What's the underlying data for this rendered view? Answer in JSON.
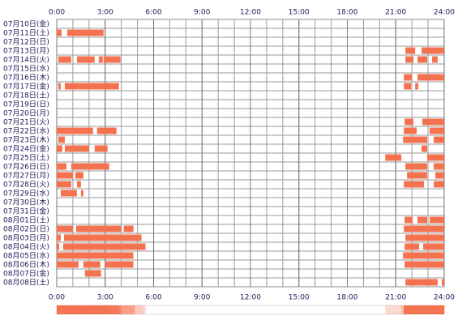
{
  "chart_data": {
    "type": "timeline",
    "categories": [
      "07月10日(金)",
      "07月11日(土)",
      "07月12日(日)",
      "07月13日(月)",
      "07月14日(火)",
      "07月15日(水)",
      "07月16日(木)",
      "07月17日(金)",
      "07月18日(土)",
      "07月19日(日)",
      "07月20日(月)",
      "07月21日(火)",
      "07月22日(水)",
      "07月23日(木)",
      "07月24日(金)",
      "07月25日(土)",
      "07月26日(日)",
      "07月27日(月)",
      "07月28日(火)",
      "07月29日(水)",
      "07月30日(木)",
      "07月31日(金)",
      "08月01日(土)",
      "08月02日(日)",
      "08月03日(月)",
      "08月04日(火)",
      "08月05日(水)",
      "08月06日(木)",
      "08月07日(金)",
      "08月08日(土)"
    ],
    "segments": [
      [],
      [
        [
          0,
          0.3
        ],
        [
          0.65,
          2.9
        ]
      ],
      [],
      [
        [
          21.6,
          22.2
        ],
        [
          22.6,
          24
        ]
      ],
      [
        [
          0.1,
          0.9
        ],
        [
          1.25,
          2.35
        ],
        [
          2.6,
          2.85
        ],
        [
          2.9,
          3.95
        ],
        [
          21.6,
          22.1
        ],
        [
          22.35,
          22.95
        ],
        [
          23.25,
          23.6
        ]
      ],
      [],
      [
        [
          21.5,
          22
        ],
        [
          22.35,
          24
        ]
      ],
      [
        [
          0.1,
          0.25
        ],
        [
          0.5,
          3.85
        ],
        [
          21.5,
          21.95
        ],
        [
          22.2,
          22.4
        ]
      ],
      [],
      [],
      [],
      [
        [
          21.55,
          22.1
        ],
        [
          22.65,
          24
        ]
      ],
      [
        [
          0,
          2.25
        ],
        [
          2.5,
          3.7
        ],
        [
          21.5,
          22.3
        ],
        [
          23.1,
          24
        ]
      ],
      [
        [
          0.1,
          0.5
        ],
        [
          21.45,
          22.95
        ],
        [
          23.35,
          24
        ]
      ],
      [
        [
          0,
          0.35
        ],
        [
          0.5,
          2
        ],
        [
          2.35,
          3.15
        ],
        [
          22.6,
          22.95
        ]
      ],
      [
        [
          20.35,
          21.35
        ],
        [
          22.95,
          24
        ]
      ],
      [
        [
          0,
          0.6
        ],
        [
          0.9,
          3.25
        ],
        [
          21.6,
          22.95
        ],
        [
          23.35,
          24
        ]
      ],
      [
        [
          0,
          1
        ],
        [
          1.15,
          1.65
        ],
        [
          21.7,
          22.95
        ],
        [
          23.45,
          24
        ]
      ],
      [
        [
          0,
          0.9
        ],
        [
          1.25,
          1.5
        ],
        [
          21.5,
          22.75
        ],
        [
          23.35,
          24
        ]
      ],
      [
        [
          0.25,
          1.25
        ],
        [
          1.5,
          1.65
        ]
      ],
      [],
      [],
      [
        [
          21.55,
          22.05
        ],
        [
          22.35,
          22.95
        ],
        [
          23.1,
          24
        ]
      ],
      [
        [
          0,
          1
        ],
        [
          1.2,
          4
        ],
        [
          4.15,
          4.75
        ],
        [
          21.5,
          24
        ]
      ],
      [
        [
          0,
          0.25
        ],
        [
          0.45,
          5.25
        ],
        [
          21.6,
          24
        ]
      ],
      [
        [
          0,
          0.15
        ],
        [
          0.4,
          5.5
        ],
        [
          21.55,
          22.45
        ],
        [
          22.7,
          24
        ]
      ],
      [
        [
          0,
          4.75
        ],
        [
          21.45,
          24
        ]
      ],
      [
        [
          0,
          1.35
        ],
        [
          1.65,
          2.7
        ],
        [
          3,
          4.75
        ],
        [
          21.55,
          24
        ]
      ],
      [
        [
          1.75,
          2.75
        ]
      ],
      [
        [
          21.6,
          23.6
        ],
        [
          23.85,
          24
        ]
      ]
    ],
    "color": "#f4724f",
    "xlim": [
      0,
      24
    ],
    "xticks": [
      {
        "value": 0,
        "label": "0:00"
      },
      {
        "value": 3,
        "label": "3:00"
      },
      {
        "value": 6,
        "label": "6:00"
      },
      {
        "value": 9,
        "label": "9:00"
      },
      {
        "value": 12,
        "label": "12:00"
      },
      {
        "value": 15,
        "label": "15:00"
      },
      {
        "value": 18,
        "label": "18:00"
      },
      {
        "value": 21,
        "label": "21:00"
      },
      {
        "value": 24,
        "label": "24:00"
      }
    ],
    "grid": true
  }
}
